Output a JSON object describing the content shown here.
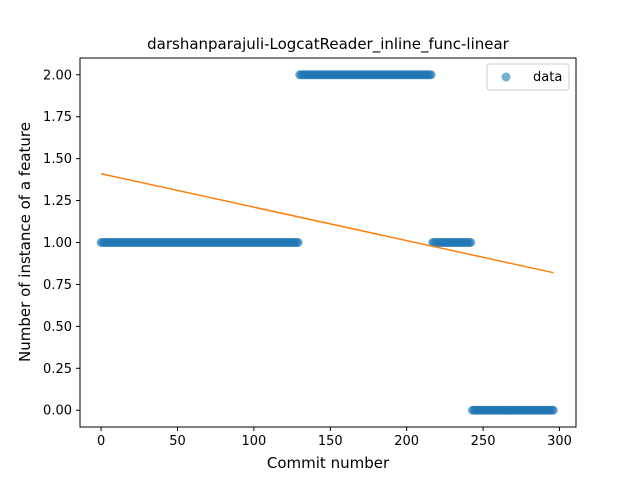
{
  "chart_data": {
    "type": "scatter",
    "title": "darshanparajuli-LogcatReader_inline_func-linear",
    "xlabel": "Commit number",
    "ylabel": "Number of instance of a feature",
    "xlim": [
      -13.8,
      310.8
    ],
    "ylim": [
      -0.1,
      2.1
    ],
    "xticks": [
      0,
      50,
      100,
      150,
      200,
      250,
      300
    ],
    "xtick_labels": [
      "0",
      "50",
      "100",
      "150",
      "200",
      "250",
      "300"
    ],
    "yticks": [
      0.0,
      0.25,
      0.5,
      0.75,
      1.0,
      1.25,
      1.5,
      1.75,
      2.0
    ],
    "ytick_labels": [
      "0.00",
      "0.25",
      "0.50",
      "0.75",
      "1.00",
      "1.25",
      "1.50",
      "1.75",
      "2.00"
    ],
    "grid": false,
    "legend_position": "top-right",
    "colors": {
      "data": "#1f77b4",
      "fit": "#ff7f0e"
    },
    "series": [
      {
        "name": "data",
        "kind": "scatter",
        "segments": [
          {
            "x_start": 0,
            "x_end": 129,
            "y": 1
          },
          {
            "x_start": 130,
            "x_end": 216,
            "y": 2
          },
          {
            "x_start": 217,
            "x_end": 242,
            "y": 1
          },
          {
            "x_start": 243,
            "x_end": 296,
            "y": 0
          }
        ]
      },
      {
        "kind": "line",
        "x": [
          0,
          296
        ],
        "y": [
          1.41,
          0.82
        ]
      }
    ]
  }
}
